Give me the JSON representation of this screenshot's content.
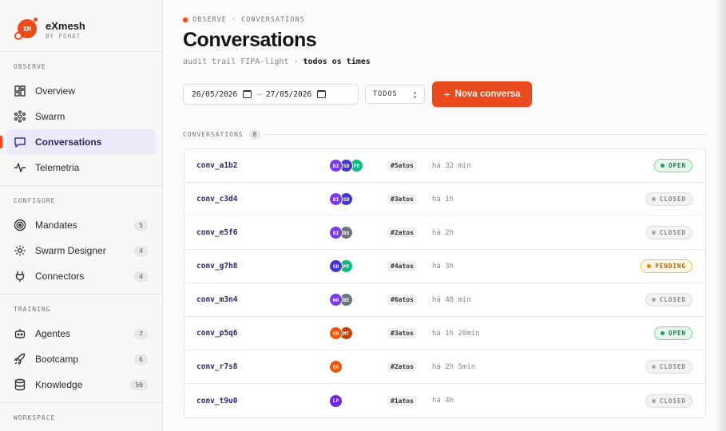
{
  "brand": {
    "logo_text": "XM",
    "name": "eXmesh",
    "sub": "BY FOHAT"
  },
  "sidebar": {
    "sections": [
      {
        "title": "OBSERVE",
        "items": [
          {
            "label": "Overview",
            "icon": "grid-icon"
          },
          {
            "label": "Swarm",
            "icon": "hexagon-nodes-icon"
          },
          {
            "label": "Conversations",
            "icon": "chat-bubble-icon",
            "active": true
          },
          {
            "label": "Telemetria",
            "icon": "pulse-icon"
          }
        ]
      },
      {
        "title": "CONFIGURE",
        "items": [
          {
            "label": "Mandates",
            "icon": "target-icon",
            "count": "5"
          },
          {
            "label": "Swarm Designer",
            "icon": "gear-icon",
            "count": "4"
          },
          {
            "label": "Connectors",
            "icon": "plug-icon",
            "count": "4"
          }
        ]
      },
      {
        "title": "TRAINING",
        "items": [
          {
            "label": "Agentes",
            "icon": "robot-icon",
            "count": "7"
          },
          {
            "label": "Bootcamp",
            "icon": "rocket-icon",
            "count": "6"
          },
          {
            "label": "Knowledge",
            "icon": "database-icon",
            "count": "50"
          }
        ]
      },
      {
        "title": "WORKSPACE",
        "items": []
      }
    ]
  },
  "header": {
    "breadcrumb": "OBSERVE · CONVERSATIONS",
    "title": "Conversations",
    "subtitle_prefix": "audit trail FIPA-light · ",
    "subtitle_bold": "todos os times"
  },
  "filters": {
    "date_from": "26/05/2026",
    "date_arrow": "→",
    "date_to": "27/05/2026",
    "team_select": "TODOS",
    "new_button": "Nova conversa"
  },
  "list": {
    "label": "CONVERSATIONS",
    "count": "8",
    "rows": [
      {
        "id": "conv_a1b2",
        "avatars": [
          {
            "t": "BI",
            "c": "#7c3aed"
          },
          {
            "t": "SD",
            "c": "#4338ca"
          },
          {
            "t": "PE",
            "c": "#10b981"
          }
        ],
        "acts": "#5atos",
        "when": "há 32 min",
        "status": "OPEN",
        "kind": "open"
      },
      {
        "id": "conv_c3d4",
        "avatars": [
          {
            "t": "BI",
            "c": "#7c3aed"
          },
          {
            "t": "SD",
            "c": "#4338ca"
          }
        ],
        "acts": "#3atos",
        "when": "há 1h",
        "status": "CLOSED",
        "kind": "closed"
      },
      {
        "id": "conv_e5f6",
        "avatars": [
          {
            "t": "BI",
            "c": "#7c3aed"
          },
          {
            "t": "BS",
            "c": "#6b7280"
          }
        ],
        "acts": "#2atos",
        "when": "há 2h",
        "status": "CLOSED",
        "kind": "closed"
      },
      {
        "id": "conv_g7h8",
        "avatars": [
          {
            "t": "SD",
            "c": "#4338ca"
          },
          {
            "t": "PE",
            "c": "#10b981"
          }
        ],
        "acts": "#4atos",
        "when": "há 3h",
        "status": "PENDING",
        "kind": "pending"
      },
      {
        "id": "conv_m3n4",
        "avatars": [
          {
            "t": "WA",
            "c": "#7c3aed"
          },
          {
            "t": "BE",
            "c": "#6b7280"
          }
        ],
        "acts": "#6atos",
        "when": "há 48 min",
        "status": "CLOSED",
        "kind": "closed"
      },
      {
        "id": "conv_p5q6",
        "avatars": [
          {
            "t": "QB",
            "c": "#ea580c"
          },
          {
            "t": "MT",
            "c": "#c2410c"
          }
        ],
        "acts": "#3atos",
        "when": "há 1h 20min",
        "status": "OPEN",
        "kind": "open"
      },
      {
        "id": "conv_r7s8",
        "avatars": [
          {
            "t": "QB",
            "c": "#ea580c"
          }
        ],
        "acts": "#2atos",
        "when": "há 2h 5min",
        "status": "CLOSED",
        "kind": "closed"
      },
      {
        "id": "conv_t9u0",
        "avatars": [
          {
            "t": "LP",
            "c": "#6d28d9"
          }
        ],
        "acts": "#1atos",
        "when": "há 4h",
        "status": "CLOSED",
        "kind": "closed"
      }
    ]
  },
  "colors": {
    "accent": "#ea4a1e",
    "active_bg": "#ece9fb",
    "open": "#18a058",
    "pending": "#e08a00"
  }
}
